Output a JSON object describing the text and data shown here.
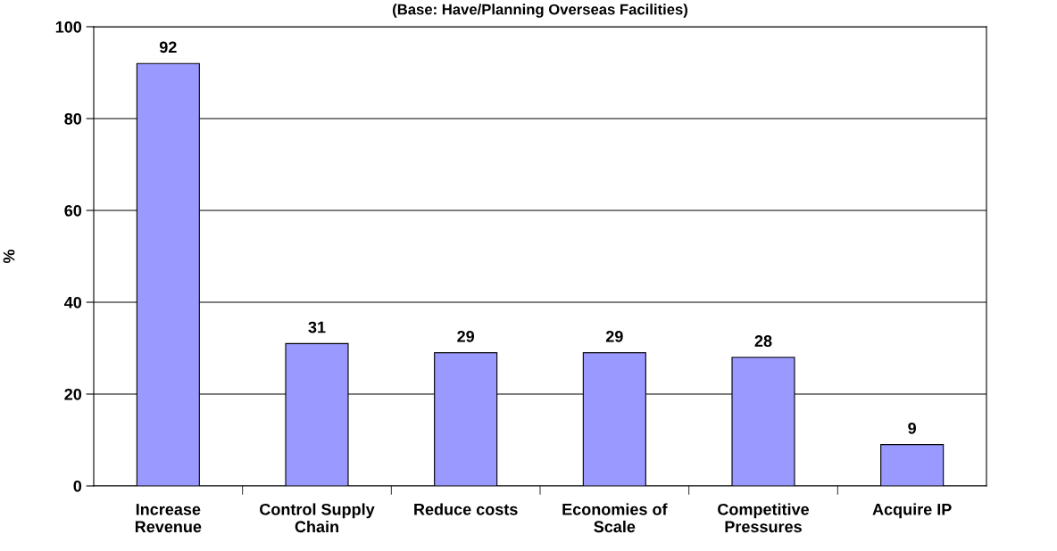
{
  "chart_data": {
    "type": "bar",
    "subtitle": "(Base: Have/Planning Overseas Facilities)",
    "ylabel": "%",
    "categories": [
      "Increase\nRevenue",
      "Control Supply\nChain",
      "Reduce costs",
      "Economies of\nScale",
      "Competitive\nPressures",
      "Acquire IP"
    ],
    "values": [
      92,
      31,
      29,
      29,
      28,
      9
    ],
    "color": "#9999ff",
    "ylim": [
      0,
      100
    ],
    "yticks": [
      0,
      20,
      40,
      60,
      80,
      100
    ],
    "grid": "y",
    "data_labels": true
  }
}
